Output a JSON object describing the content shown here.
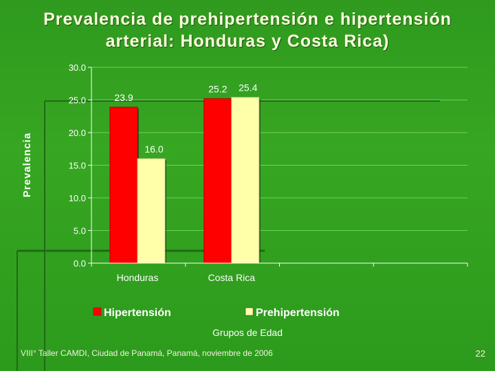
{
  "slide": {
    "title_line1": "Prevalencia de prehipertensión e hipertensión",
    "title_line2": "arterial: Honduras y Costa Rica)",
    "footer": "VIII° Taller CAMDI, Ciudad de Panamá, Panamá, noviembre de 2006",
    "page_number": "22"
  },
  "chart_data": {
    "type": "bar",
    "categories": [
      "Honduras",
      "Costa Rica"
    ],
    "series": [
      {
        "name": "Hipertensión",
        "values": [
          23.9,
          25.2
        ],
        "color": "#ff0000"
      },
      {
        "name": "Prehipertensión",
        "values": [
          16.0,
          25.4
        ],
        "color": "#ffffaa"
      }
    ],
    "value_labels": [
      [
        "23.9",
        "25.2"
      ],
      [
        "16.0",
        "25.4"
      ]
    ],
    "xlabel": "Grupos de Edad",
    "ylabel": "Prevalencia",
    "ylim": [
      0,
      30
    ],
    "yticks": [
      "0.0",
      "5.0",
      "10.0",
      "15.0",
      "20.0",
      "25.0",
      "30.0"
    ],
    "grid": true,
    "legend_position": "bottom"
  }
}
